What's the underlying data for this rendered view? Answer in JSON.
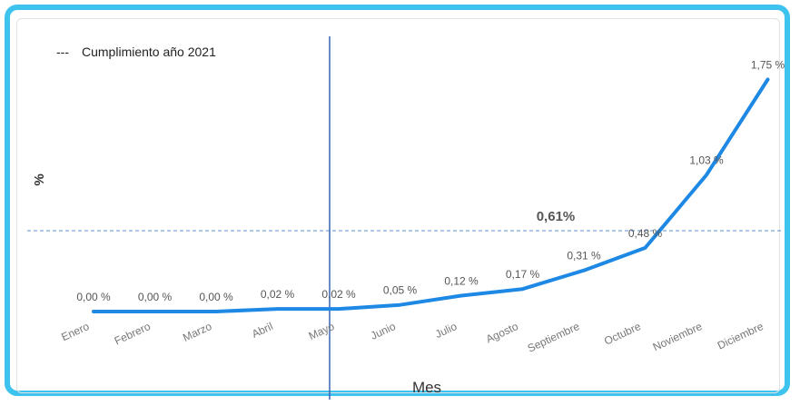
{
  "chart_data": {
    "type": "line",
    "xlabel": "Mes",
    "ylabel": "%",
    "categories": [
      "Enero",
      "Febrero",
      "Marzo",
      "Abril",
      "Mayo",
      "Junio",
      "Julio",
      "Agosto",
      "Septiembre",
      "Octubre",
      "Noviembre",
      "Diciembre"
    ],
    "values": [
      0.0,
      0.0,
      0.0,
      0.02,
      0.02,
      0.05,
      0.12,
      0.17,
      0.31,
      0.48,
      1.03,
      1.75
    ],
    "data_labels": [
      "0,00 %",
      "0,00 %",
      "0,00 %",
      "0,02 %",
      "0,02 %",
      "0,05 %",
      "0,12 %",
      "0,17 %",
      "0,31 %",
      "0,48 %",
      "1,03 %",
      "1,75 %"
    ],
    "reference_line": {
      "name": "Cumplimiento año 2021",
      "value": 0.61,
      "label": "0,61%"
    },
    "legend": {
      "marker": "---",
      "label": "Cumplimiento año 2021",
      "position": "top-left"
    },
    "current_month_marker": "Mayo",
    "colors": {
      "line": "#1e88e5",
      "reference": "#5b8fd6",
      "marker": "#3a64b5",
      "border": "#3ec3ee"
    }
  }
}
